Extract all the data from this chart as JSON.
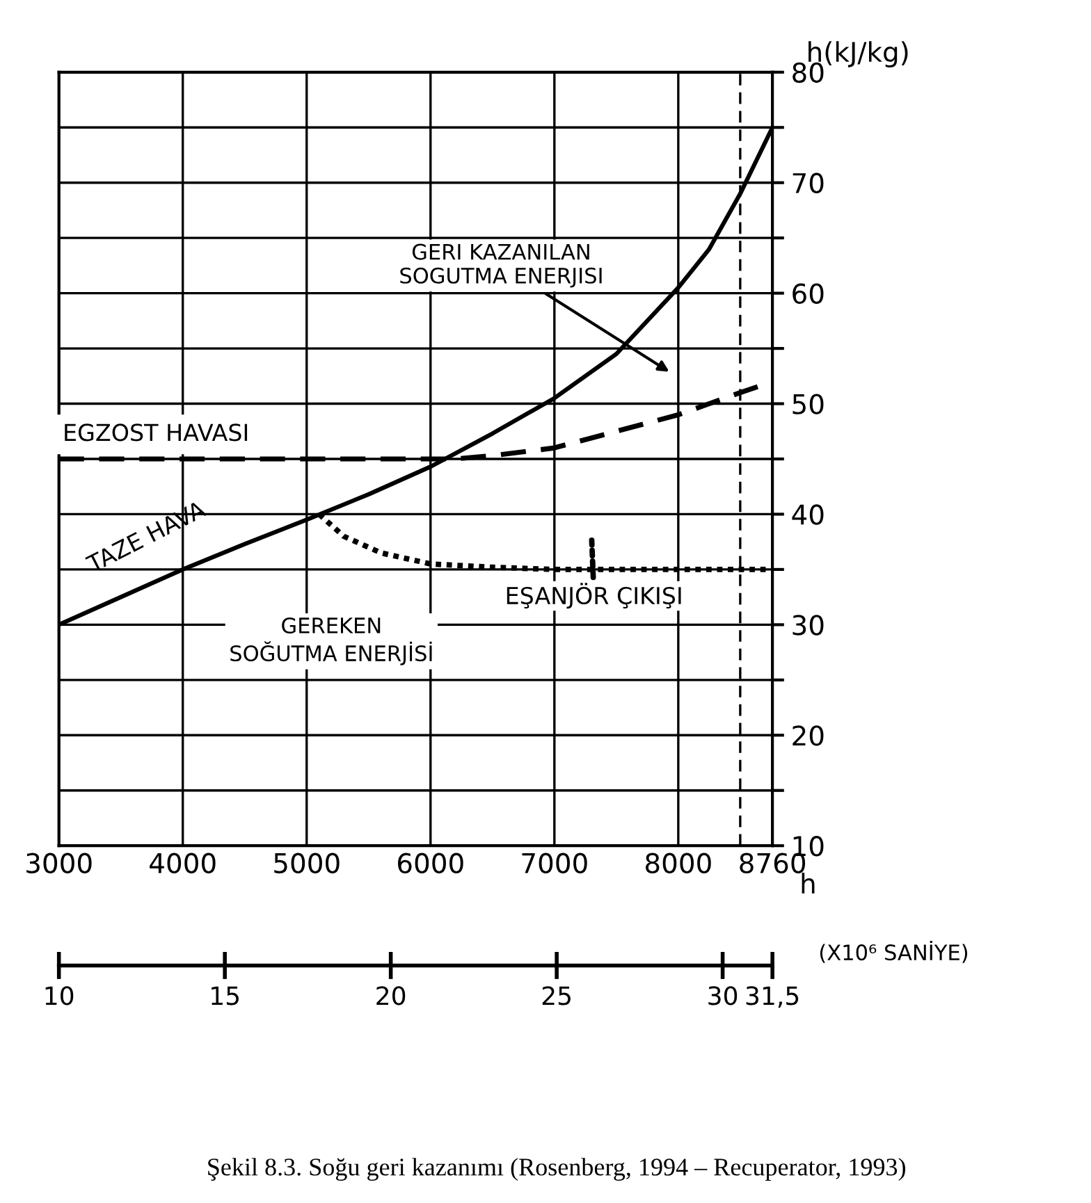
{
  "chart_data": {
    "type": "line",
    "title": null,
    "ylabel": "h(kJ/kg)",
    "xlabel": "h",
    "x2label": "(X10⁶ SANİYE)",
    "xlim": [
      3000,
      8760
    ],
    "xticks": [
      3000,
      4000,
      5000,
      6000,
      7000,
      8000,
      8760
    ],
    "ylim": [
      10,
      80
    ],
    "yticks": [
      10,
      {
        "value": 15,
        "label": null
      },
      20,
      {
        "value": 25,
        "label": null
      },
      30,
      {
        "value": 35,
        "label": null
      },
      40,
      {
        "value": 45,
        "label": null
      },
      50,
      {
        "value": 55,
        "label": null
      },
      60,
      {
        "value": 65,
        "label": null
      },
      70,
      {
        "value": 75,
        "label": null
      },
      80
    ],
    "x2lim": [
      10,
      31.5
    ],
    "x2ticks": [
      10,
      15,
      20,
      25,
      30,
      {
        "value": 31.5,
        "label": "31,5"
      }
    ],
    "grid": true,
    "series": [
      {
        "name": "TAZE HAVA",
        "color": "#000000",
        "line_style": "solid",
        "x": [
          3000,
          3500,
          4000,
          4500,
          5000,
          5500,
          6000,
          6500,
          7000,
          7500,
          8000,
          8250,
          8500,
          8760
        ],
        "values": [
          30,
          32.5,
          35,
          37.3,
          39.5,
          41.8,
          44.3,
          47.3,
          50.5,
          54.5,
          60.5,
          64,
          69,
          75
        ]
      },
      {
        "name": "EGZOST HAVASI",
        "color": "#000000",
        "line_style": "dashed",
        "x": [
          3000,
          6200,
          6500,
          7000,
          7500,
          8000,
          8500,
          8760
        ],
        "values": [
          45,
          45,
          45.3,
          46,
          47.5,
          49,
          51,
          52
        ]
      },
      {
        "name": "EŞANJÖR ÇIKIŞI",
        "color": "#000000",
        "line_style": "dotted",
        "x": [
          5100,
          5300,
          5600,
          6000,
          6500,
          7000,
          8760
        ],
        "values": [
          40,
          38,
          36.5,
          35.5,
          35.2,
          35,
          35
        ]
      }
    ],
    "ref_lines": [
      {
        "axis": "x",
        "value": 8500,
        "label": null,
        "line_style": "dashed",
        "color": "#000000"
      }
    ],
    "annotations": [
      "GERI KAZANILAN\nSOGUTMA ENERJISI",
      {
        "text": "GEREKEN\nSOĞUTMA ENERJİSİ"
      },
      {
        "text": "Şekil 8.3. Soğu geri kazanımı (Rosenberg, 1994 – Recuperator, 1993)"
      }
    ]
  }
}
